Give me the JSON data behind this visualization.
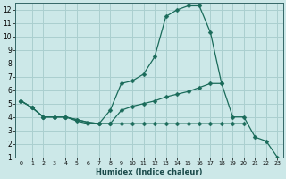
{
  "xlabel": "Humidex (Indice chaleur)",
  "bg_color": "#cce8e8",
  "grid_color": "#aacfcf",
  "line_color": "#1a6b5a",
  "spine_color": "#336666",
  "xmin": -0.5,
  "xmax": 23.5,
  "ymin": 1,
  "ymax": 12.5,
  "xticks": [
    0,
    1,
    2,
    3,
    4,
    5,
    6,
    7,
    8,
    9,
    10,
    11,
    12,
    13,
    14,
    15,
    16,
    17,
    18,
    19,
    20,
    21,
    22,
    23
  ],
  "yticks": [
    1,
    2,
    3,
    4,
    5,
    6,
    7,
    8,
    9,
    10,
    11,
    12
  ],
  "line1_x": [
    0,
    1,
    2,
    3,
    4,
    5,
    6,
    7,
    8,
    9,
    10,
    11,
    12,
    13,
    14,
    15,
    16,
    17,
    18,
    19,
    20,
    21,
    22,
    23
  ],
  "line1_y": [
    5.2,
    4.7,
    4.0,
    4.0,
    4.0,
    3.7,
    3.5,
    3.5,
    4.5,
    6.5,
    6.7,
    7.2,
    8.5,
    11.5,
    12.0,
    12.3,
    12.3,
    10.3,
    6.5,
    null,
    null,
    null,
    null,
    null
  ],
  "line2_x": [
    0,
    1,
    2,
    3,
    4,
    5,
    6,
    7,
    8,
    9,
    10,
    11,
    12,
    13,
    14,
    15,
    16,
    17,
    18,
    19,
    20,
    21,
    22,
    23
  ],
  "line2_y": [
    5.2,
    4.7,
    4.0,
    4.0,
    4.0,
    3.8,
    3.6,
    3.5,
    3.5,
    4.5,
    4.8,
    5.0,
    5.2,
    5.5,
    5.7,
    5.9,
    6.2,
    6.5,
    6.5,
    4.0,
    4.0,
    2.5,
    2.2,
    1.0
  ],
  "line3_x": [
    0,
    1,
    2,
    3,
    4,
    5,
    6,
    7,
    8,
    9,
    10,
    11,
    12,
    13,
    14,
    15,
    16,
    17,
    18,
    19,
    20,
    21,
    22,
    23
  ],
  "line3_y": [
    5.2,
    4.7,
    4.0,
    4.0,
    4.0,
    3.8,
    3.6,
    3.5,
    3.5,
    3.5,
    3.5,
    3.5,
    3.5,
    3.5,
    3.5,
    3.5,
    3.5,
    3.5,
    3.5,
    3.5,
    3.5,
    null,
    null,
    null
  ],
  "markersize": 2.5
}
